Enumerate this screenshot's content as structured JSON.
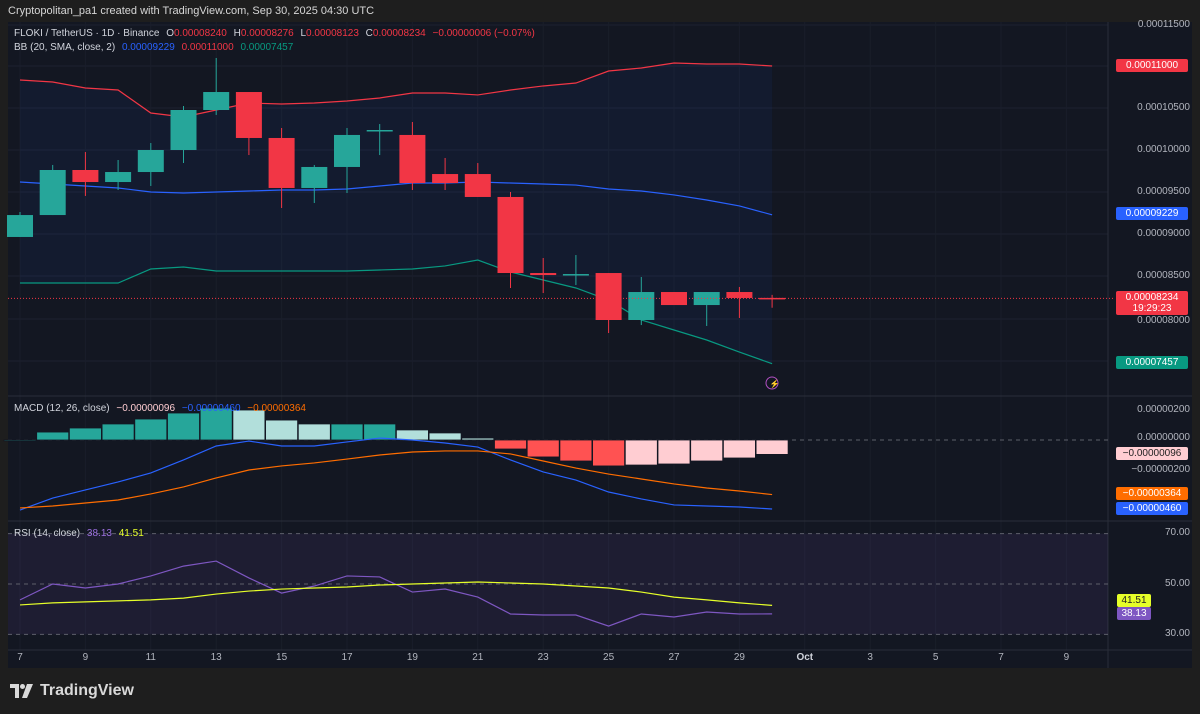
{
  "credit": "Cryptopolitan_pa1 created with TradingView.com, Sep 30, 2025 04:30 UTC",
  "symbol": {
    "title": "FLOKI / TetherUS · 1D · Binance",
    "o_label": "O",
    "o": "0.00008240",
    "h_label": "H",
    "h": "0.00008276",
    "l_label": "L",
    "l": "0.00008123",
    "c_label": "C",
    "c": "0.00008234",
    "change": "−0.00000006 (−0.07%)"
  },
  "bb_legend": {
    "title": "BB (20, SMA, close, 2)",
    "basis": "0.00009229",
    "upper": "0.00011000",
    "lower": "0.00007457"
  },
  "macd_legend": {
    "title": "MACD (12, 26, close)",
    "hist": "−0.00000096",
    "macd": "−0.00000460",
    "signal": "−0.00000364"
  },
  "rsi_legend": {
    "title": "RSI (14, close)",
    "rsi": "38.13",
    "ma": "41.51"
  },
  "price_axis": [
    "0.00011500",
    "0.00010500",
    "0.00010000",
    "0.00009500",
    "0.00009000",
    "0.00008500",
    "0.00008000"
  ],
  "price_tags": {
    "upper": "0.00011000",
    "basis": "0.00009229",
    "last": "0.00008234",
    "countdown": "19:29:23",
    "lower": "0.00007457"
  },
  "macd_axis": [
    "0.00000200",
    "0.00000000",
    "−0.00000200"
  ],
  "macd_tags": {
    "hist": "−0.00000096",
    "signal": "−0.00000364",
    "macd": "−0.00000460"
  },
  "rsi_axis": [
    "70.00",
    "50.00",
    "30.00"
  ],
  "rsi_tags": {
    "ma": "41.51",
    "rsi": "38.13"
  },
  "x_axis": [
    "7",
    "9",
    "11",
    "13",
    "15",
    "17",
    "19",
    "21",
    "23",
    "25",
    "27",
    "29",
    "Oct",
    "3",
    "5",
    "7",
    "9"
  ],
  "logo": "TradingView",
  "colors": {
    "up": "#26a69a",
    "down": "#f23645",
    "bb_upper": "#f23645",
    "bb_basis": "#2962ff",
    "bb_lower": "#089981",
    "macd": "#2962ff",
    "signal": "#ff6d00",
    "rsi": "#7e57c2",
    "rsi_ma": "#e6ff29"
  },
  "chart_data": {
    "type": "candlestick",
    "unit_note": "prices and MACD in units of 1e-8 USDT",
    "days": [
      7,
      8,
      9,
      10,
      11,
      12,
      13,
      14,
      15,
      16,
      17,
      18,
      19,
      20,
      21,
      22,
      23,
      24,
      25,
      26,
      27,
      28,
      29,
      30
    ],
    "ohlc": [
      [
        8965,
        9262,
        8965,
        9226
      ],
      [
        9226,
        9822,
        9226,
        9762
      ],
      [
        9762,
        9976,
        9453,
        9619
      ],
      [
        9619,
        9881,
        9524,
        9738
      ],
      [
        9738,
        10083,
        9572,
        10000
      ],
      [
        10000,
        10524,
        9845,
        10476
      ],
      [
        10476,
        11095,
        10417,
        10690
      ],
      [
        10690,
        10690,
        9940,
        10143
      ],
      [
        10143,
        10262,
        9310,
        9548
      ],
      [
        9548,
        9822,
        9369,
        9798
      ],
      [
        9798,
        10262,
        9488,
        10179
      ],
      [
        10226,
        10309,
        9940,
        10238
      ],
      [
        10179,
        10333,
        9524,
        9607
      ],
      [
        9714,
        9905,
        9524,
        9607
      ],
      [
        9714,
        9845,
        9441,
        9441
      ],
      [
        9441,
        9500,
        8358,
        8536
      ],
      [
        8536,
        8715,
        8298,
        8512
      ],
      [
        8512,
        8750,
        8393,
        8524
      ],
      [
        8536,
        8536,
        7822,
        7977
      ],
      [
        7977,
        8489,
        7917,
        8310
      ],
      [
        8310,
        8310,
        8155,
        8155
      ],
      [
        8155,
        8310,
        7906,
        8310
      ],
      [
        8310,
        8370,
        8001,
        8239
      ],
      [
        8240,
        8276,
        8123,
        8234
      ]
    ],
    "bb_upper": [
      10833,
      10809,
      10738,
      10714,
      10440,
      10393,
      10476,
      10559,
      10547,
      10559,
      10583,
      10619,
      10678,
      10678,
      10655,
      10714,
      10762,
      10797,
      10940,
      10976,
      11035,
      11023,
      11023,
      11000
    ],
    "bb_basis": [
      9619,
      9595,
      9572,
      9548,
      9500,
      9488,
      9500,
      9512,
      9524,
      9524,
      9536,
      9572,
      9607,
      9607,
      9619,
      9607,
      9595,
      9583,
      9536,
      9512,
      9465,
      9405,
      9334,
      9229
    ],
    "bb_lower": [
      8417,
      8417,
      8417,
      8417,
      8584,
      8608,
      8560,
      8560,
      8560,
      8560,
      8560,
      8572,
      8584,
      8620,
      8691,
      8548,
      8453,
      8358,
      8215,
      7977,
      7858,
      7739,
      7596,
      7457
    ],
    "macd_hist": [
      0,
      53,
      80,
      107,
      140,
      180,
      213,
      200,
      133,
      107,
      107,
      107,
      67,
      47,
      13,
      -60,
      -113,
      -140,
      -173,
      -167,
      -160,
      -140,
      -120,
      -96
    ],
    "macd_line": [
      -467,
      -387,
      -333,
      -280,
      -220,
      -133,
      -40,
      -7,
      -40,
      -40,
      -13,
      13,
      0,
      -20,
      -47,
      -133,
      -213,
      -267,
      -347,
      -393,
      -433,
      -440,
      -447,
      -460
    ],
    "signal_line": [
      -453,
      -440,
      -420,
      -400,
      -360,
      -313,
      -253,
      -200,
      -173,
      -153,
      -127,
      -100,
      -80,
      -73,
      -73,
      -93,
      -140,
      -187,
      -227,
      -260,
      -293,
      -320,
      -340,
      -364
    ],
    "rsi": [
      43.7,
      50,
      48.4,
      50,
      53.2,
      57.1,
      59.1,
      52.4,
      46.4,
      49.2,
      53.2,
      52.8,
      46.8,
      48,
      44.8,
      38.1,
      37.7,
      37.7,
      33.3,
      38.1,
      36.9,
      38.9,
      38.1,
      38.13
    ],
    "rsi_ma": [
      41.7,
      42.5,
      42.9,
      43.3,
      43.7,
      44.4,
      46,
      47.2,
      48,
      48.4,
      48.8,
      49.6,
      50,
      50.4,
      50.8,
      50.4,
      50,
      49.2,
      48.4,
      46.8,
      44.8,
      43.7,
      42.5,
      41.51
    ],
    "rsi_levels": [
      70,
      50,
      30
    ]
  }
}
